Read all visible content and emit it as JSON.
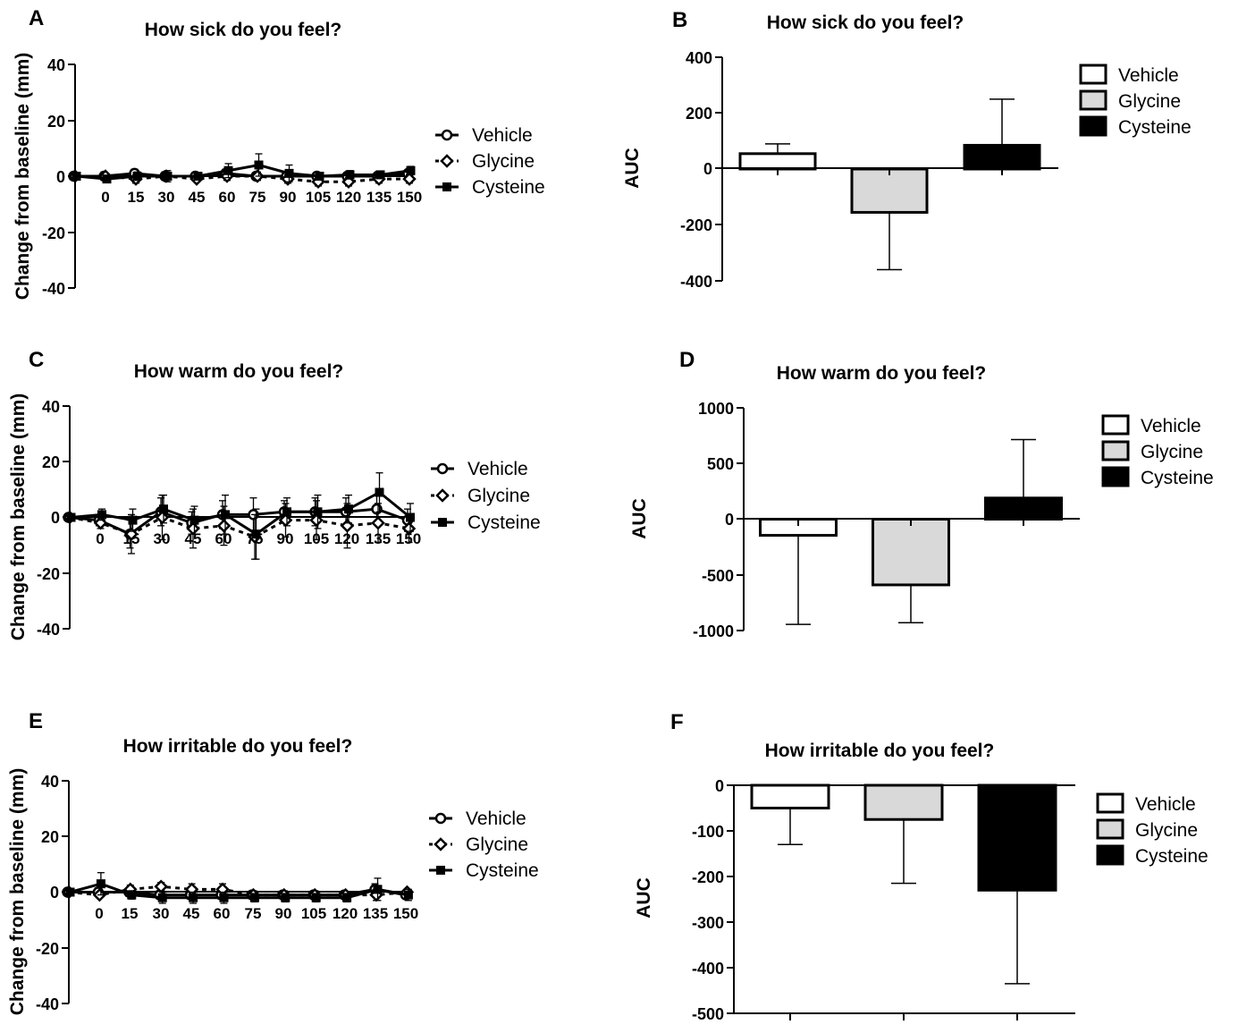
{
  "colors": {
    "vehicle": "#ffffff",
    "glycine": "#d9d9d9",
    "cysteine": "#000000",
    "axis": "#000000"
  },
  "legend_entries": [
    "Vehicle",
    "Glycine",
    "Cysteine"
  ],
  "chart_data": [
    {
      "panel": "A",
      "type": "line",
      "title": "How sick do you feel?",
      "ylabel": "Change from baseline (mm)",
      "xlabel": "",
      "ylim": [
        -40,
        40
      ],
      "yticks": [
        40,
        20,
        0,
        -20,
        -40
      ],
      "x": [
        -15,
        0,
        15,
        30,
        45,
        60,
        75,
        90,
        105,
        120,
        135,
        150
      ],
      "xticklabels": [
        "0",
        "15",
        "30",
        "45",
        "60",
        "75",
        "90",
        "105",
        "120",
        "135",
        "150"
      ],
      "legend_position": "right",
      "series": [
        {
          "name": "Vehicle",
          "marker": "circle",
          "dashed": false,
          "values": [
            0,
            0,
            1,
            0,
            0,
            1,
            0,
            0,
            0,
            0,
            0,
            1
          ],
          "err": [
            0,
            1.5,
            1.5,
            1.5,
            1,
            1.5,
            1,
            1,
            1,
            1,
            1,
            1
          ]
        },
        {
          "name": "Glycine",
          "marker": "diamond",
          "dashed": true,
          "values": [
            0,
            0,
            -1,
            0,
            -1,
            0,
            0,
            -1,
            -2,
            -2,
            -1,
            -1
          ],
          "err": [
            0,
            1,
            1.5,
            1.5,
            1,
            1.5,
            1.5,
            1.5,
            1.5,
            1.5,
            1.5,
            1.5
          ]
        },
        {
          "name": "Cysteine",
          "marker": "square",
          "dashed": false,
          "values": [
            0,
            -1,
            0,
            0,
            0,
            2,
            4,
            1,
            0,
            0.5,
            0.5,
            2
          ],
          "err": [
            0,
            1,
            1.5,
            2,
            1,
            2.5,
            4,
            3,
            1,
            1.5,
            1,
            1.5
          ]
        }
      ]
    },
    {
      "panel": "B",
      "type": "bar",
      "title": "How sick do you feel?",
      "ylabel": "AUC",
      "xlabel": "",
      "ylim": [
        -400,
        400
      ],
      "yticks": [
        400,
        200,
        0,
        -200,
        -400
      ],
      "categories": [
        "Vehicle",
        "Glycine",
        "Cysteine"
      ],
      "values": [
        55,
        -155,
        85
      ],
      "errors": [
        35,
        205,
        165
      ],
      "legend_position": "top-right"
    },
    {
      "panel": "C",
      "type": "line",
      "title": "How warm do you feel?",
      "ylabel": "Change from baseline (mm)",
      "xlabel": "",
      "ylim": [
        -40,
        40
      ],
      "yticks": [
        40,
        20,
        0,
        -20,
        -40
      ],
      "x": [
        -15,
        0,
        15,
        30,
        45,
        60,
        75,
        90,
        105,
        120,
        135,
        150
      ],
      "xticklabels": [
        "0",
        "15",
        "30",
        "45",
        "60",
        "75",
        "90",
        "105",
        "120",
        "135",
        "150"
      ],
      "legend_position": "right",
      "series": [
        {
          "name": "Vehicle",
          "marker": "circle",
          "dashed": false,
          "values": [
            0,
            -1,
            -6,
            2,
            -2,
            1,
            1,
            2,
            2,
            2,
            3,
            -1
          ],
          "err": [
            0,
            2,
            5,
            5,
            4,
            5,
            6,
            4,
            5,
            5,
            5,
            4
          ]
        },
        {
          "name": "Glycine",
          "marker": "diamond",
          "dashed": true,
          "values": [
            0,
            -2,
            -6,
            0,
            -4,
            -3,
            -7,
            -1,
            -1,
            -3,
            -2,
            -4
          ],
          "err": [
            0,
            2,
            7,
            8,
            7,
            7,
            8,
            6,
            7,
            8,
            7,
            5
          ]
        },
        {
          "name": "Cysteine",
          "marker": "square",
          "dashed": false,
          "values": [
            0,
            1,
            -1,
            3,
            -1,
            1,
            -6,
            2,
            2,
            3,
            9,
            0
          ],
          "err": [
            0,
            2,
            4,
            5,
            5,
            7,
            9,
            5,
            6,
            5,
            7,
            5
          ]
        }
      ]
    },
    {
      "panel": "D",
      "type": "bar",
      "title": "How warm do you feel?",
      "ylabel": "AUC",
      "xlabel": "",
      "ylim": [
        -1000,
        1000
      ],
      "yticks": [
        1000,
        500,
        0,
        -500,
        -1000
      ],
      "categories": [
        "Vehicle",
        "Glycine",
        "Cysteine"
      ],
      "values": [
        -145,
        -590,
        190
      ],
      "errors": [
        800,
        340,
        525
      ],
      "legend_position": "top-right"
    },
    {
      "panel": "E",
      "type": "line",
      "title": "How irritable do you feel?",
      "ylabel": "Change from baseline (mm)",
      "xlabel": "",
      "ylim": [
        -40,
        40
      ],
      "yticks": [
        40,
        20,
        0,
        -20,
        -40
      ],
      "x": [
        -15,
        0,
        15,
        30,
        45,
        60,
        75,
        90,
        105,
        120,
        135,
        150
      ],
      "xticklabels": [
        "0",
        "15",
        "30",
        "45",
        "60",
        "75",
        "90",
        "105",
        "120",
        "135",
        "150"
      ],
      "legend_position": "right",
      "series": [
        {
          "name": "Vehicle",
          "marker": "circle",
          "dashed": false,
          "values": [
            0,
            0,
            0,
            -1,
            -1,
            -1,
            -1,
            -1,
            -1,
            -1,
            1,
            -1
          ],
          "err": [
            0,
            1.5,
            1.5,
            1.5,
            1.5,
            1.5,
            1,
            1,
            1,
            1,
            2,
            1
          ]
        },
        {
          "name": "Glycine",
          "marker": "diamond",
          "dashed": true,
          "values": [
            0,
            -1,
            1,
            2,
            1,
            1,
            -1,
            -1,
            -1,
            -1,
            -1,
            0
          ],
          "err": [
            0,
            1,
            1.5,
            1.5,
            2,
            2,
            1.5,
            1.5,
            1.5,
            1,
            2,
            1
          ]
        },
        {
          "name": "Cysteine",
          "marker": "square",
          "dashed": false,
          "values": [
            0,
            3,
            -1,
            -2,
            -2,
            -2,
            -2,
            -2,
            -2,
            -2,
            1,
            -1
          ],
          "err": [
            0,
            4,
            1.5,
            2,
            2,
            2,
            1.5,
            1.5,
            1.5,
            1.5,
            4,
            2
          ]
        }
      ]
    },
    {
      "panel": "F",
      "type": "bar",
      "title": "How irritable do you feel?",
      "ylabel": "AUC",
      "xlabel": "",
      "ylim": [
        -500,
        0
      ],
      "yticks": [
        0,
        -100,
        -200,
        -300,
        -400,
        -500
      ],
      "categories": [
        "Vehicle",
        "Glycine",
        "Cysteine"
      ],
      "values": [
        -50,
        -75,
        -230
      ],
      "errors": [
        80,
        140,
        205
      ],
      "legend_position": "right"
    }
  ]
}
